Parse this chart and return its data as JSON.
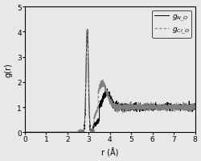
{
  "title": "",
  "xlabel": "r (Å)",
  "ylabel": "g(r)",
  "xlim": [
    0,
    8
  ],
  "ylim": [
    0,
    5
  ],
  "xticks": [
    0,
    1,
    2,
    3,
    4,
    5,
    6,
    7,
    8
  ],
  "yticks": [
    0,
    1,
    2,
    3,
    4,
    5
  ],
  "legend": [
    {
      "label": "$g_{N\\_O}$",
      "linestyle": "solid",
      "color": "black"
    },
    {
      "label": "$g_{Cl\\_O}$",
      "linestyle": "dotted",
      "color": "black"
    }
  ],
  "background_color": "#e8e8e8",
  "plot_bg": "#e8e8e8",
  "peak_x": 2.93,
  "peak_y": 4.05,
  "seed": 42
}
